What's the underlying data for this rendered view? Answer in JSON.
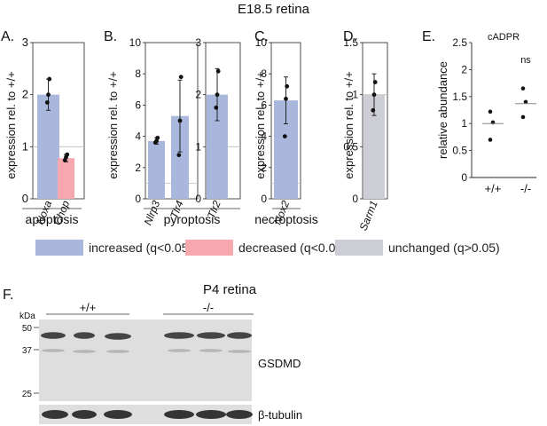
{
  "figure": {
    "title_e185": "E18.5 retina",
    "title_p4": "P4 retina"
  },
  "colors": {
    "increased": "#a9b7dc",
    "decreased": "#f6a8ae",
    "unchanged": "#cdcdd6"
  },
  "legend": [
    {
      "label": "increased (q<0.05)",
      "color": "#a9b7dc"
    },
    {
      "label": "decreased (q<0.05)",
      "color": "#f6a8ae"
    },
    {
      "label": "unchanged (q>0.05)",
      "color": "#cdcdd6"
    }
  ],
  "chart_data": [
    {
      "panel": "A.",
      "type": "bar",
      "ylabel": "expression rel. to +/+",
      "ylim": [
        0,
        3
      ],
      "yticks": [
        0,
        1,
        2,
        3
      ],
      "reference_line": 1,
      "categories": [
        "Noxa",
        "Chop"
      ],
      "values": [
        2.0,
        0.78
      ],
      "errors": [
        0.3,
        0.07
      ],
      "points": [
        [
          1.85,
          2.0,
          2.3
        ],
        [
          0.74,
          0.8,
          0.85
        ]
      ],
      "bar_status": [
        "increased",
        "decreased"
      ],
      "group_label": "apoptosis"
    },
    {
      "panel": "B.",
      "type": "bar",
      "ylabel": "expression rel. to +/+",
      "ylim": [
        0,
        10
      ],
      "yticks": [
        0,
        2,
        4,
        6,
        8,
        10
      ],
      "reference_line": 1,
      "categories": [
        "Nlrp3",
        "Tlr4"
      ],
      "values": [
        3.7,
        5.3
      ],
      "errors": [
        0.2,
        2.3
      ],
      "points": [
        [
          3.6,
          3.7,
          3.9
        ],
        [
          2.8,
          5.0,
          7.8
        ]
      ],
      "bar_status": [
        "increased",
        "increased"
      ],
      "group_label": "pyroptosis"
    },
    {
      "panel": "",
      "type": "bar",
      "ylim": [
        0,
        3
      ],
      "yticks": [
        0,
        1,
        2,
        3
      ],
      "reference_line": 1,
      "categories": [
        "Tlr2"
      ],
      "values": [
        2.0
      ],
      "errors": [
        0.5
      ],
      "points": [
        [
          1.75,
          2.0,
          2.45
        ]
      ],
      "bar_status": [
        "increased"
      ]
    },
    {
      "panel": "C.",
      "type": "bar",
      "ylabel": "expression rel. to +/+",
      "ylim": [
        0,
        10
      ],
      "yticks": [
        0,
        2,
        4,
        6,
        8,
        10
      ],
      "reference_line": 1,
      "categories": [
        "Nox2"
      ],
      "values": [
        6.3
      ],
      "errors": [
        1.5
      ],
      "points": [
        [
          4.0,
          6.4,
          7.2
        ]
      ],
      "bar_status": [
        "increased"
      ],
      "group_label": "necroptosis"
    },
    {
      "panel": "D.",
      "type": "bar",
      "ylabel": "expression rel. to +/+",
      "ylim": [
        0,
        1.5
      ],
      "yticks": [
        0,
        0.5,
        1.0,
        1.5
      ],
      "reference_line": 1,
      "categories": [
        "Sarm1"
      ],
      "values": [
        1.0
      ],
      "errors": [
        0.2
      ],
      "points": [
        [
          0.85,
          1.0,
          1.12
        ]
      ],
      "bar_status": [
        "unchanged"
      ]
    },
    {
      "panel": "E.",
      "type": "scatter",
      "title": "cADPR",
      "ylabel": "relative abundance",
      "ylim": [
        0,
        2.5
      ],
      "yticks": [
        0,
        0.5,
        1.0,
        1.5,
        2.0,
        2.5
      ],
      "categories": [
        "+/+",
        "-/-"
      ],
      "points": [
        [
          0.7,
          1.02,
          1.22
        ],
        [
          1.12,
          1.4,
          1.65
        ]
      ],
      "means": [
        1.0,
        1.37
      ],
      "annotation": "ns"
    }
  ],
  "blot": {
    "panel": "F.",
    "kda_label": "kDa",
    "markers": [
      "50",
      "37",
      "25"
    ],
    "groups": [
      "+/+",
      "-/-"
    ],
    "labels": [
      "GSDMD",
      "β-tubulin"
    ]
  }
}
